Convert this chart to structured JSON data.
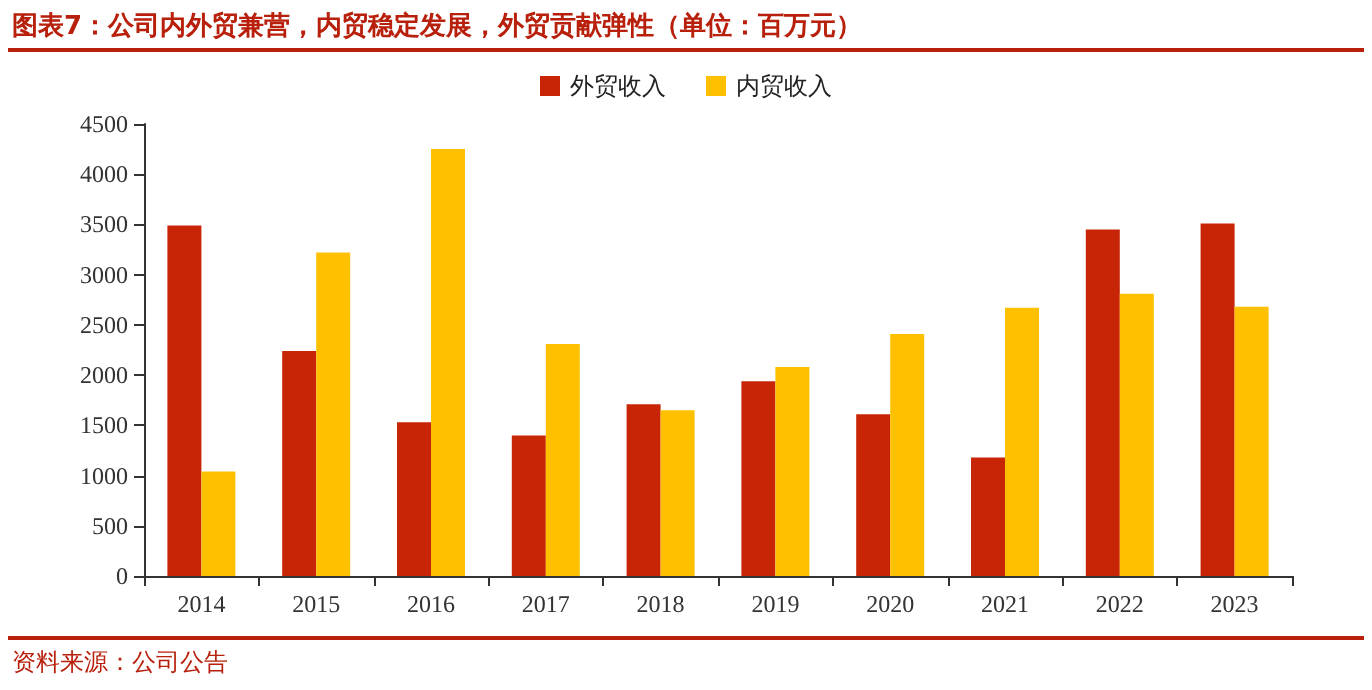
{
  "chart_data": {
    "type": "bar",
    "title": "图表7：公司内外贸兼营，内贸稳定发展，外贸贡献弹性（单位：百万元）",
    "categories": [
      "2014",
      "2015",
      "2016",
      "2017",
      "2018",
      "2019",
      "2020",
      "2021",
      "2022",
      "2023"
    ],
    "series": [
      {
        "name": "外贸收入",
        "color": "#c82506",
        "values": [
          3490,
          2240,
          1530,
          1400,
          1710,
          1940,
          1610,
          1180,
          3450,
          3510
        ]
      },
      {
        "name": "内贸收入",
        "color": "#ffc000",
        "values": [
          1040,
          3220,
          4250,
          2310,
          1650,
          2080,
          2410,
          2670,
          2810,
          2680
        ]
      }
    ],
    "ylim": [
      0,
      4500
    ],
    "yticks": [
      0,
      500,
      1000,
      1500,
      2000,
      2500,
      3000,
      3500,
      4000,
      4500
    ],
    "grid": false,
    "legend": "top",
    "annotations": [
      "资料来源：公司公告"
    ]
  }
}
